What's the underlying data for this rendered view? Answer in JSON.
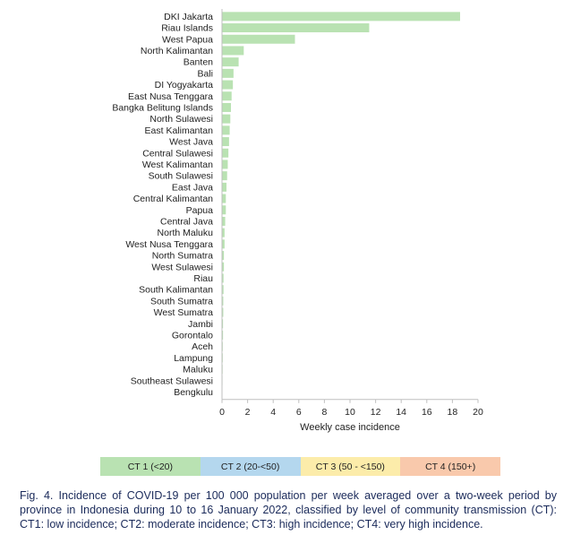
{
  "chart_data": {
    "type": "bar",
    "orientation": "horizontal",
    "categories": [
      "DKI Jakarta",
      "Riau Islands",
      "West Papua",
      "North Kalimantan",
      "Banten",
      "Bali",
      "DI Yogyakarta",
      "East Nusa Tenggara",
      "Bangka Belitung Islands",
      "North Sulawesi",
      "East Kalimantan",
      "West Java",
      "Central Sulawesi",
      "West Kalimantan",
      "South Sulawesi",
      "East Java",
      "Central Kalimantan",
      "Papua",
      "Central Java",
      "North Maluku",
      "West Nusa Tenggara",
      "North Sumatra",
      "West Sulawesi",
      "Riau",
      "South Kalimantan",
      "South Sumatra",
      "West Sumatra",
      "Jambi",
      "Gorontalo",
      "Aceh",
      "Lampung",
      "Maluku",
      "Southeast Sulawesi",
      "Bengkulu"
    ],
    "values": [
      18.6,
      11.5,
      5.7,
      1.7,
      1.3,
      0.9,
      0.85,
      0.75,
      0.7,
      0.65,
      0.6,
      0.55,
      0.5,
      0.45,
      0.4,
      0.35,
      0.3,
      0.3,
      0.25,
      0.2,
      0.2,
      0.15,
      0.15,
      0.12,
      0.12,
      0.1,
      0.1,
      0.08,
      0.08,
      0.06,
      0.06,
      0.05,
      0.04,
      0.03
    ],
    "xlabel": "Weekly case incidence",
    "xlim": [
      0,
      20
    ],
    "xticks": [
      0,
      2,
      4,
      6,
      8,
      10,
      12,
      14,
      16,
      18,
      20
    ],
    "grid": false,
    "bar_color": "#b9e2b2",
    "legend": [
      {
        "label": "CT 1 (<20)",
        "color": "#b9e2b2"
      },
      {
        "label": "CT 2 (20-<50)",
        "color": "#b4d7ee"
      },
      {
        "label": "CT 3 (50 - <150)",
        "color": "#fcecaa"
      },
      {
        "label": "CT 4 (150+)",
        "color": "#f9c9ac"
      }
    ]
  },
  "caption": "Fig. 4. Incidence of COVID-19 per 100 000 population per week averaged over a two-week period by province in Indonesia during 10 to 16 January 2022, classified by level of community transmission (CT): CT1: low incidence; CT2: moderate incidence; CT3: high incidence; CT4: very high incidence."
}
